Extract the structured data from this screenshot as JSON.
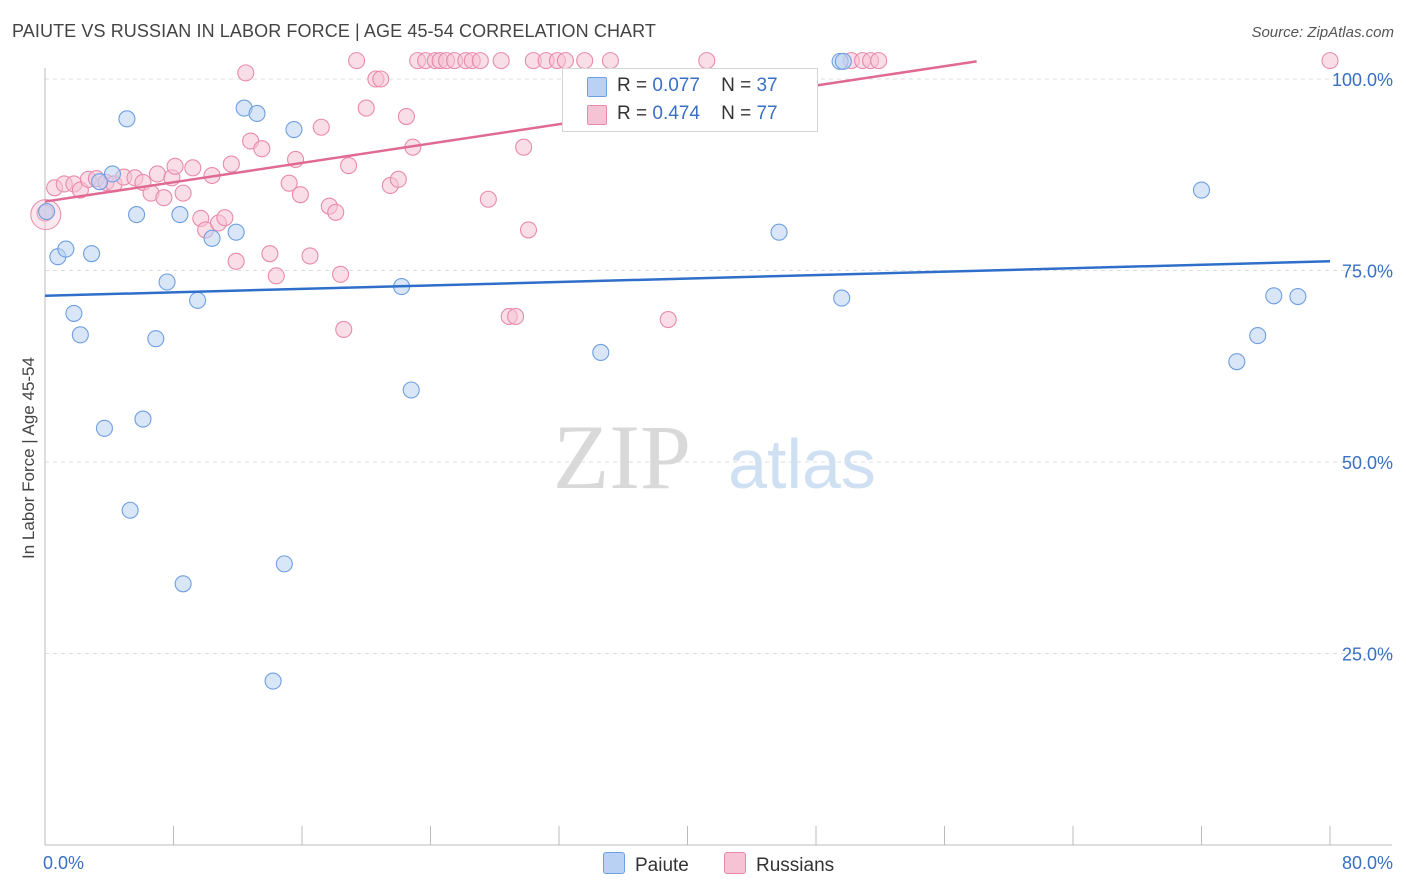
{
  "title": "PAIUTE VS RUSSIAN IN LABOR FORCE | AGE 45-54 CORRELATION CHART",
  "source": "Source: ZipAtlas.com",
  "watermark": {
    "zip": "ZIP",
    "atlas": "atlas"
  },
  "legend": {
    "r_label": "R =",
    "n_label": "N =",
    "rows": [
      {
        "series": "Paiute",
        "r": "0.077",
        "n": "37"
      },
      {
        "series": "Russians",
        "r": "0.474",
        "n": "77"
      }
    ]
  },
  "colors": {
    "paiute_fill": "#b9d1f3",
    "paiute_stroke": "#6e9fe0",
    "paiute_line": "#2f6fca",
    "russians_fill": "#f6c3d4",
    "russians_stroke": "#e98aab",
    "russians_line": "#e06a93",
    "axis_label": "#3a6fc4",
    "grid": "#dddddd"
  },
  "chart_data": {
    "type": "scatter",
    "title": "PAIUTE VS RUSSIAN IN LABOR FORCE | AGE 45-54 CORRELATION CHART",
    "xlabel": "",
    "ylabel": "In Labor Force | Age 45-54",
    "xlim": [
      0,
      80
    ],
    "ylim": [
      0,
      100
    ],
    "x_tick_labels": [
      "0.0%",
      "80.0%"
    ],
    "y_ticks": [
      25,
      50,
      75,
      100
    ],
    "y_tick_labels": [
      "25.0%",
      "50.0%",
      "75.0%",
      "100.0%"
    ],
    "legend_position": "top-center",
    "series": [
      {
        "name": "Paiute",
        "r": 0.077,
        "n": 37,
        "trend": {
          "x": [
            0,
            80
          ],
          "y": [
            71.7,
            76.2
          ]
        },
        "points": [
          {
            "x": 0.1,
            "y": 82.7
          },
          {
            "x": 0.8,
            "y": 76.8
          },
          {
            "x": 1.3,
            "y": 77.8
          },
          {
            "x": 1.8,
            "y": 69.4
          },
          {
            "x": 2.2,
            "y": 66.6
          },
          {
            "x": 2.9,
            "y": 77.2
          },
          {
            "x": 3.4,
            "y": 86.6
          },
          {
            "x": 3.7,
            "y": 54.4
          },
          {
            "x": 4.2,
            "y": 87.6
          },
          {
            "x": 5.1,
            "y": 94.8
          },
          {
            "x": 5.3,
            "y": 43.7
          },
          {
            "x": 5.7,
            "y": 82.3
          },
          {
            "x": 6.1,
            "y": 55.6
          },
          {
            "x": 6.9,
            "y": 66.1
          },
          {
            "x": 7.6,
            "y": 73.5
          },
          {
            "x": 8.4,
            "y": 82.3
          },
          {
            "x": 8.6,
            "y": 34.1
          },
          {
            "x": 9.5,
            "y": 71.1
          },
          {
            "x": 10.4,
            "y": 79.2
          },
          {
            "x": 11.9,
            "y": 80.0
          },
          {
            "x": 12.4,
            "y": 96.2
          },
          {
            "x": 13.2,
            "y": 95.5
          },
          {
            "x": 14.2,
            "y": 21.4
          },
          {
            "x": 14.9,
            "y": 36.7
          },
          {
            "x": 15.5,
            "y": 93.4
          },
          {
            "x": 22.2,
            "y": 72.9
          },
          {
            "x": 22.8,
            "y": 59.4
          },
          {
            "x": 34.6,
            "y": 64.3
          },
          {
            "x": 45.7,
            "y": 80.0
          },
          {
            "x": 49.5,
            "y": 102.3
          },
          {
            "x": 49.7,
            "y": 102.3
          },
          {
            "x": 49.6,
            "y": 71.4
          },
          {
            "x": 72.0,
            "y": 85.5
          },
          {
            "x": 74.2,
            "y": 63.1
          },
          {
            "x": 75.5,
            "y": 66.5
          },
          {
            "x": 76.5,
            "y": 71.7
          },
          {
            "x": 78.0,
            "y": 71.6
          }
        ]
      },
      {
        "name": "Russians",
        "r": 0.474,
        "n": 77,
        "trend": {
          "x": [
            0,
            58
          ],
          "y": [
            84.0,
            102.3
          ]
        },
        "points": [
          {
            "x": 0.0,
            "y": 82.5
          },
          {
            "x": 0.6,
            "y": 85.8
          },
          {
            "x": 1.2,
            "y": 86.3
          },
          {
            "x": 1.8,
            "y": 86.3
          },
          {
            "x": 2.2,
            "y": 85.5
          },
          {
            "x": 2.7,
            "y": 86.9
          },
          {
            "x": 3.2,
            "y": 87.0
          },
          {
            "x": 3.8,
            "y": 86.5
          },
          {
            "x": 4.3,
            "y": 86.3
          },
          {
            "x": 4.9,
            "y": 87.2
          },
          {
            "x": 5.6,
            "y": 87.1
          },
          {
            "x": 6.1,
            "y": 86.5
          },
          {
            "x": 6.6,
            "y": 85.1
          },
          {
            "x": 7.0,
            "y": 87.6
          },
          {
            "x": 7.4,
            "y": 84.5
          },
          {
            "x": 7.9,
            "y": 87.1
          },
          {
            "x": 8.1,
            "y": 88.6
          },
          {
            "x": 8.6,
            "y": 85.1
          },
          {
            "x": 9.2,
            "y": 88.4
          },
          {
            "x": 9.7,
            "y": 81.8
          },
          {
            "x": 10.0,
            "y": 80.3
          },
          {
            "x": 10.4,
            "y": 87.4
          },
          {
            "x": 10.8,
            "y": 81.2
          },
          {
            "x": 11.2,
            "y": 81.9
          },
          {
            "x": 11.6,
            "y": 88.9
          },
          {
            "x": 11.9,
            "y": 76.2
          },
          {
            "x": 12.5,
            "y": 100.8
          },
          {
            "x": 12.8,
            "y": 91.9
          },
          {
            "x": 13.5,
            "y": 90.9
          },
          {
            "x": 14.0,
            "y": 77.2
          },
          {
            "x": 14.4,
            "y": 74.3
          },
          {
            "x": 15.2,
            "y": 86.4
          },
          {
            "x": 15.6,
            "y": 89.5
          },
          {
            "x": 15.9,
            "y": 84.9
          },
          {
            "x": 16.5,
            "y": 76.9
          },
          {
            "x": 17.2,
            "y": 93.7
          },
          {
            "x": 17.7,
            "y": 83.4
          },
          {
            "x": 18.1,
            "y": 82.6
          },
          {
            "x": 18.4,
            "y": 74.5
          },
          {
            "x": 18.6,
            "y": 67.3
          },
          {
            "x": 18.9,
            "y": 88.7
          },
          {
            "x": 19.4,
            "y": 102.4
          },
          {
            "x": 20.0,
            "y": 96.2
          },
          {
            "x": 20.6,
            "y": 100.0
          },
          {
            "x": 20.9,
            "y": 100.0
          },
          {
            "x": 21.5,
            "y": 86.1
          },
          {
            "x": 22.0,
            "y": 86.9
          },
          {
            "x": 22.5,
            "y": 95.1
          },
          {
            "x": 22.9,
            "y": 91.1
          },
          {
            "x": 23.2,
            "y": 102.4
          },
          {
            "x": 23.7,
            "y": 102.4
          },
          {
            "x": 24.3,
            "y": 102.4
          },
          {
            "x": 24.6,
            "y": 102.4
          },
          {
            "x": 25.0,
            "y": 102.4
          },
          {
            "x": 25.5,
            "y": 102.4
          },
          {
            "x": 26.2,
            "y": 102.4
          },
          {
            "x": 26.6,
            "y": 102.4
          },
          {
            "x": 27.1,
            "y": 102.4
          },
          {
            "x": 27.6,
            "y": 84.3
          },
          {
            "x": 28.4,
            "y": 102.4
          },
          {
            "x": 28.9,
            "y": 69.0
          },
          {
            "x": 29.3,
            "y": 69.0
          },
          {
            "x": 29.8,
            "y": 91.1
          },
          {
            "x": 30.1,
            "y": 80.3
          },
          {
            "x": 30.4,
            "y": 102.4
          },
          {
            "x": 31.2,
            "y": 102.4
          },
          {
            "x": 31.9,
            "y": 102.4
          },
          {
            "x": 32.4,
            "y": 102.4
          },
          {
            "x": 33.6,
            "y": 102.4
          },
          {
            "x": 35.2,
            "y": 102.4
          },
          {
            "x": 38.8,
            "y": 68.6
          },
          {
            "x": 41.2,
            "y": 102.4
          },
          {
            "x": 50.2,
            "y": 102.4
          },
          {
            "x": 50.9,
            "y": 102.4
          },
          {
            "x": 51.4,
            "y": 102.4
          },
          {
            "x": 51.9,
            "y": 102.4
          },
          {
            "x": 80.0,
            "y": 102.4
          }
        ]
      }
    ]
  }
}
